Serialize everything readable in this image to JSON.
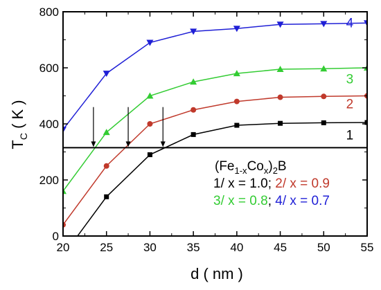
{
  "chart_data": {
    "type": "line",
    "xlabel": "d ( nm )",
    "ylabel": {
      "base": "T",
      "sub": "C",
      "rest": " ( K )"
    },
    "xlim": [
      20,
      55
    ],
    "ylim": [
      0,
      800
    ],
    "xticks": [
      "20",
      "25",
      "30",
      "35",
      "40",
      "45",
      "50",
      "55"
    ],
    "yticks": [
      "0",
      "200",
      "400",
      "600",
      "800"
    ],
    "grid": false,
    "reference_line": {
      "y": 315
    },
    "arrows": [
      {
        "x": 23.5,
        "y_from": 460,
        "y_to": 315
      },
      {
        "x": 27.5,
        "y_from": 460,
        "y_to": 315
      },
      {
        "x": 31.5,
        "y_from": 460,
        "y_to": 315
      }
    ],
    "series": [
      {
        "id": "1",
        "label": "1",
        "color": "#000000",
        "marker": "square",
        "x": [
          20,
          25,
          30,
          35,
          40,
          45,
          50,
          55
        ],
        "y": [
          -70,
          140,
          290,
          362,
          395,
          402,
          404,
          405
        ],
        "marker_x": [
          25,
          30,
          35,
          40,
          45,
          50,
          55
        ]
      },
      {
        "id": "2",
        "label": "2",
        "color": "#c0392b",
        "marker": "circle",
        "x": [
          20,
          25,
          30,
          35,
          40,
          45,
          50,
          55
        ],
        "y": [
          40,
          250,
          400,
          450,
          480,
          495,
          498,
          500
        ],
        "marker_x": [
          20,
          25,
          30,
          35,
          40,
          45,
          50,
          55
        ]
      },
      {
        "id": "3",
        "label": "3",
        "color": "#33cc33",
        "marker": "triangle-up",
        "x": [
          20,
          25,
          30,
          35,
          40,
          45,
          50,
          55
        ],
        "y": [
          160,
          370,
          500,
          550,
          580,
          595,
          597,
          600
        ],
        "marker_x": [
          20,
          25,
          30,
          35,
          40,
          45,
          50,
          55
        ]
      },
      {
        "id": "4",
        "label": "4",
        "color": "#1f1fd6",
        "marker": "triangle-down",
        "x": [
          20,
          25,
          30,
          35,
          40,
          45,
          50,
          55
        ],
        "y": [
          380,
          580,
          690,
          730,
          740,
          755,
          757,
          760
        ],
        "marker_x": [
          20,
          25,
          30,
          35,
          40,
          45,
          50,
          55
        ]
      }
    ],
    "curve_labels": [
      {
        "text": "4",
        "x": 53,
        "y": 745,
        "color": "#1f1fd6"
      },
      {
        "text": "3",
        "x": 53,
        "y": 545,
        "color": "#33cc33"
      },
      {
        "text": "2",
        "x": 53,
        "y": 455,
        "color": "#c0392b"
      },
      {
        "text": "1",
        "x": 53,
        "y": 345,
        "color": "#000000"
      }
    ],
    "legend": {
      "formula": {
        "p1": "(Fe",
        "s1": "1-x",
        "p2": "Co",
        "s2": "x",
        "p3": ")",
        "s3": "2",
        "p4": "B"
      },
      "line1": [
        {
          "text": "1/ x = 1.0; ",
          "color": "#000000"
        },
        {
          "text": "2/ x = 0.9",
          "color": "#c0392b"
        }
      ],
      "line2": [
        {
          "text": "3/ x = 0.8",
          "color": "#33cc33"
        },
        {
          "text": "; ",
          "color": "#000000"
        },
        {
          "text": "4/ x = 0.7",
          "color": "#1f1fd6"
        }
      ]
    }
  }
}
